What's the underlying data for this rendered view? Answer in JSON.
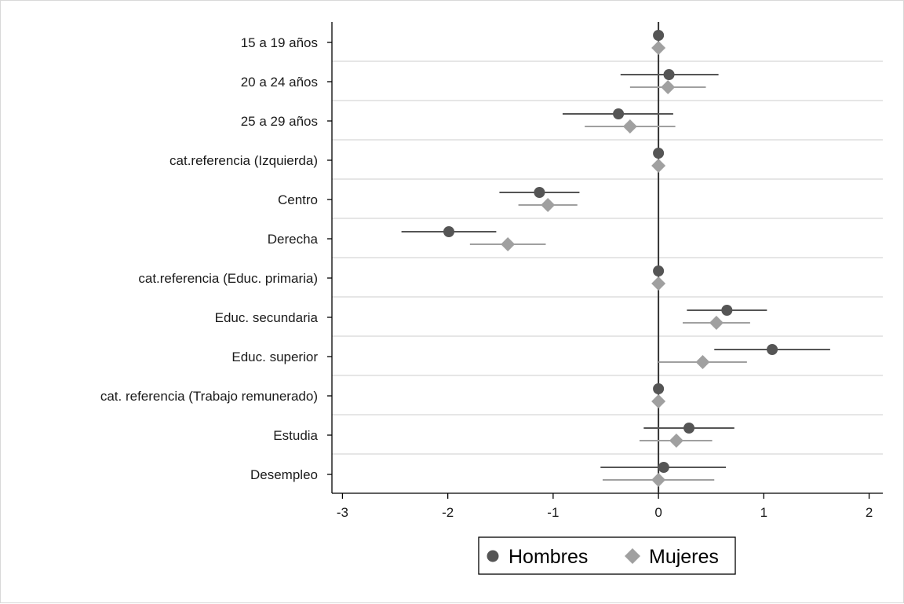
{
  "chart_data": {
    "type": "scatter",
    "orientation": "horizontal-coefficient-plot",
    "categories": [
      "15 a 19 años",
      "20 a 24 años",
      "25 a 29 años",
      "cat.referencia (Izquierda)",
      "Centro",
      "Derecha",
      "cat.referencia (Educ. primaria)",
      "Educ. secundaria",
      "Educ. superior",
      "cat. referencia (Trabajo remunerado)",
      "Estudia",
      "Desempleo"
    ],
    "series": [
      {
        "name": "Hombres",
        "marker": "circle",
        "color": "#555555",
        "values": [
          0,
          0.1,
          -0.38,
          0,
          -1.13,
          -1.99,
          0,
          0.65,
          1.08,
          0,
          0.29,
          0.05
        ],
        "ci_low": [
          0,
          -0.36,
          -0.91,
          0,
          -1.51,
          -2.44,
          0,
          0.27,
          0.53,
          0,
          -0.14,
          -0.55
        ],
        "ci_high": [
          0,
          0.57,
          0.14,
          0,
          -0.75,
          -1.54,
          0,
          1.03,
          1.63,
          0,
          0.72,
          0.64
        ]
      },
      {
        "name": "Mujeres",
        "marker": "diamond",
        "color": "#a0a0a0",
        "values": [
          0,
          0.09,
          -0.27,
          0,
          -1.05,
          -1.43,
          0,
          0.55,
          0.42,
          0,
          0.17,
          0
        ],
        "ci_low": [
          0,
          -0.27,
          -0.7,
          0,
          -1.33,
          -1.79,
          0,
          0.23,
          0,
          0,
          -0.18,
          -0.53
        ],
        "ci_high": [
          0,
          0.45,
          0.16,
          0,
          -0.77,
          -1.07,
          0,
          0.87,
          0.84,
          0,
          0.51,
          0.53
        ]
      }
    ],
    "xlim": [
      -3.1,
      2.13
    ],
    "xticks": [
      "-3",
      "-2",
      "-1",
      "0",
      "1",
      "2"
    ],
    "reference_line": 0,
    "grid": "horizontal separators between categories",
    "legend_position": "bottom-center",
    "xlabel": "",
    "ylabel": "",
    "title": ""
  }
}
